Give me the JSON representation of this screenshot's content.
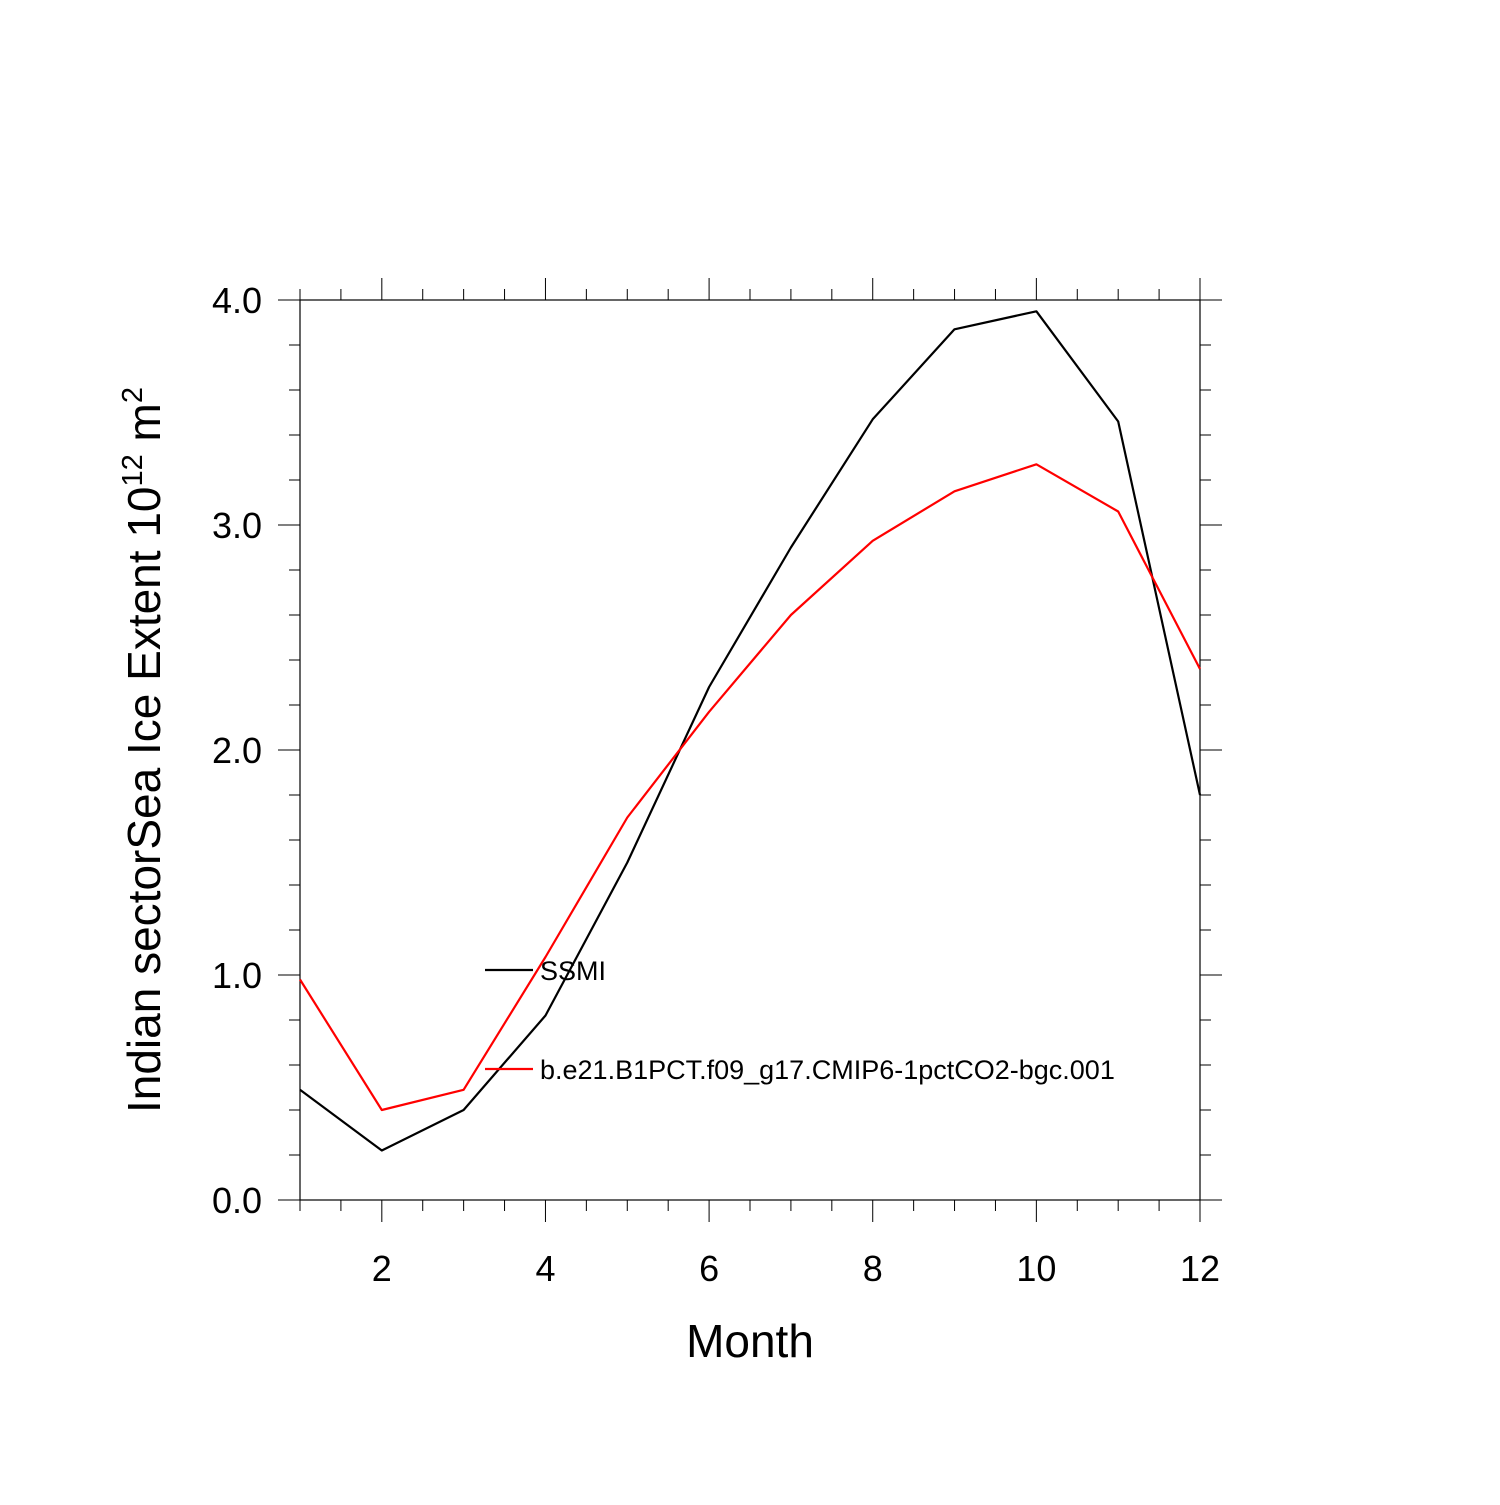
{
  "chart_data": {
    "type": "line",
    "title": "",
    "xlabel": "Month",
    "ylabel": {
      "text": "Indian sectorSea Ice Extent 10",
      "exponent": "12",
      "unit": " m",
      "unit_exponent": "2"
    },
    "xlim": [
      1,
      12
    ],
    "ylim": [
      0.0,
      4.0
    ],
    "x": [
      1,
      2,
      3,
      4,
      5,
      6,
      7,
      8,
      9,
      10,
      11,
      12
    ],
    "x_ticks": [
      2,
      4,
      6,
      8,
      10,
      12
    ],
    "x_tick_labels": [
      "2",
      "4",
      "6",
      "8",
      "10",
      "12"
    ],
    "y_ticks": [
      0.0,
      1.0,
      2.0,
      3.0,
      4.0
    ],
    "y_tick_labels": [
      "0.0",
      "1.0",
      "2.0",
      "3.0",
      "4.0"
    ],
    "grid": false,
    "legend_placement": "center-left inside",
    "series": [
      {
        "name": "SSMI",
        "color": "#000000",
        "values": [
          0.49,
          0.22,
          0.4,
          0.82,
          1.5,
          2.28,
          2.9,
          3.47,
          3.87,
          3.95,
          3.46,
          1.8
        ]
      },
      {
        "name": "b.e21.B1PCT.f09_g17.CMIP6-1pctCO2-bgc.001",
        "color": "#ff0000",
        "values": [
          0.98,
          0.4,
          0.49,
          1.08,
          1.7,
          2.17,
          2.6,
          2.93,
          3.15,
          3.27,
          3.06,
          2.36
        ]
      }
    ]
  }
}
